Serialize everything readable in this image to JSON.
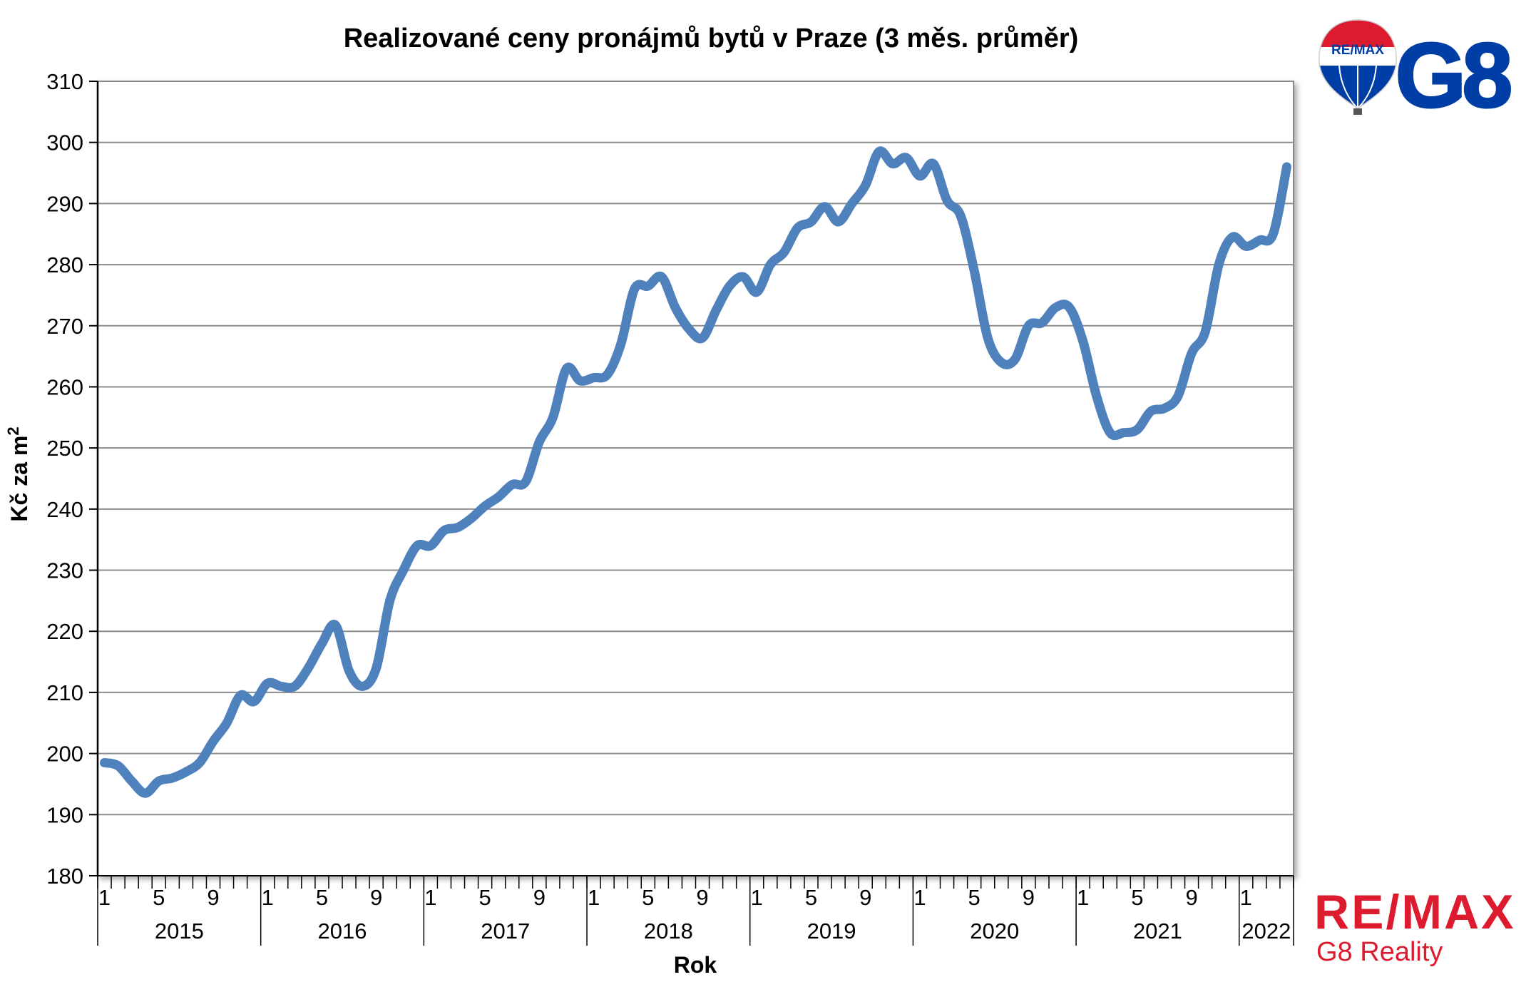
{
  "logos": {
    "balloon_text": "RE/MAX",
    "g8_text": "G8",
    "brand_name": "RE/MAX",
    "brand_sub": "G8 Reality",
    "colors": {
      "red": "#dc1c2e",
      "blue": "#003da5"
    }
  },
  "chart_data": {
    "type": "line",
    "title": "Realizované ceny pronájmů bytů v Praze (3 měs. průměr)",
    "xlabel": "Rok",
    "ylabel": "Kč za m",
    "ylabel_sup": "2",
    "ylim": [
      180,
      310
    ],
    "yticks": [
      180,
      190,
      200,
      210,
      220,
      230,
      240,
      250,
      260,
      270,
      280,
      290,
      300,
      310
    ],
    "grid": true,
    "legend": "none",
    "line_color": "#4f81bd",
    "years": [
      "2015",
      "2016",
      "2017",
      "2018",
      "2019",
      "2020",
      "2021",
      "2022"
    ],
    "month_tick_labels": [
      "1",
      "5",
      "9"
    ],
    "series": [
      {
        "values": [
          198.5,
          198.0,
          195.5,
          193.5,
          195.5,
          196.0,
          197.0,
          198.5,
          202.0,
          205.0,
          209.5,
          208.5,
          211.5,
          211.0,
          211.0,
          214.0,
          218.0,
          221.0,
          213.5,
          211.0,
          214.0,
          225.0,
          230.0,
          234.0,
          234.0,
          236.5,
          237.0,
          238.5,
          240.5,
          242.0,
          244.0,
          244.5,
          251.0,
          255.0,
          263.0,
          261.0,
          261.5,
          262.0,
          267.0,
          276.0,
          276.5,
          278.0,
          273.0,
          269.5,
          268.0,
          272.5,
          276.5,
          278.0,
          275.5,
          280.0,
          282.0,
          286.0,
          287.0,
          289.5,
          287.0,
          290.0,
          293.0,
          298.5,
          296.5,
          297.5,
          294.5,
          296.5,
          290.5,
          288.0,
          279.0,
          268.0,
          264.0,
          264.5,
          270.0,
          270.5,
          273.0,
          273.0,
          267.5,
          258.5,
          252.5,
          252.5,
          253.0,
          256.0,
          256.5,
          258.5,
          265.5,
          269.0,
          280.0,
          284.5,
          283.0,
          284.0,
          285.0,
          296.0
        ]
      }
    ]
  }
}
